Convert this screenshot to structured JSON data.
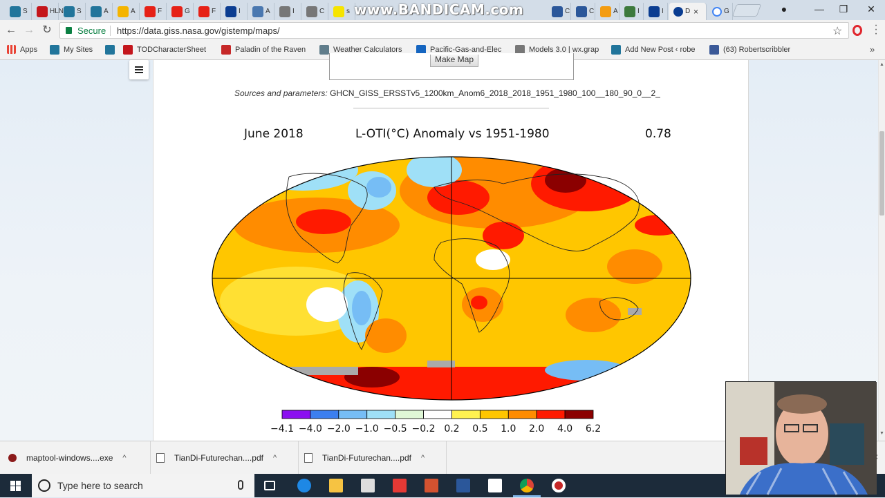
{
  "watermark": "www.BANDICAM.com",
  "tabs": [
    {
      "label": "S",
      "color": "#21759b"
    },
    {
      "label": "HLN",
      "color": "#c4161c"
    },
    {
      "label": "S",
      "color": "#21759b"
    },
    {
      "label": "A",
      "color": "#21759b"
    },
    {
      "label": "A",
      "color": "#f4b400"
    },
    {
      "label": "F",
      "color": "#e62117"
    },
    {
      "label": "G",
      "color": "#e62117"
    },
    {
      "label": "F",
      "color": "#e62117"
    },
    {
      "label": "I",
      "color": "#0b3d91"
    },
    {
      "label": "A",
      "color": "#4a78b0"
    },
    {
      "label": "I",
      "color": "#777777"
    },
    {
      "label": "C",
      "color": "#777777"
    },
    {
      "label": "s",
      "color": "#f6e400"
    }
  ],
  "right_tabs": [
    {
      "label": "C",
      "color": "#2b579a"
    },
    {
      "label": "C",
      "color": "#2b579a"
    },
    {
      "label": "A",
      "color": "#f39c12"
    },
    {
      "label": "I",
      "color": "#3d7a3d"
    },
    {
      "label": "I",
      "color": "#0b3d91"
    }
  ],
  "active_tab": {
    "label": "D",
    "close": "×"
  },
  "google_tab": {
    "label": "G",
    "color": "#4285f4"
  },
  "window_controls": {
    "profile": "●",
    "minimize": "—",
    "restore": "❐",
    "close": "✕"
  },
  "nav": {
    "back": "←",
    "forward": "→",
    "reload": "↻"
  },
  "address": {
    "secure_label": "Secure",
    "url": "https://data.giss.nasa.gov/gistemp/maps/",
    "star": "☆"
  },
  "bookmarks": [
    {
      "label": "Apps",
      "color": "#e94335"
    },
    {
      "label": "My Sites",
      "color": "#21759b"
    },
    {
      "label": "",
      "color": "#21759b"
    },
    {
      "label": "TODCharacterSheet ",
      "color": "#c4161c"
    },
    {
      "label": "Paladin of the Raven",
      "color": "#c62828"
    },
    {
      "label": "Weather Calculators",
      "color": "#607d8b"
    },
    {
      "label": "Pacific-Gas-and-Elec",
      "color": "#1565c0"
    },
    {
      "label": "Models 3.0 | wx.grap",
      "color": "#777777"
    },
    {
      "label": "Add New Post ‹ robe",
      "color": "#21759b"
    },
    {
      "label": "(63) Robertscribbler",
      "color": "#3b5998"
    }
  ],
  "bookmarks_more": "»",
  "form": {
    "make_map_label": "Make Map"
  },
  "sources": {
    "label": "Sources and parameters:",
    "value": "GHCN_GISS_ERSSTv5_1200km_Anom6_2018_2018_1951_1980_100__180_90_0__2_"
  },
  "map": {
    "left_title": "June 2018",
    "center_title": "L-OTI(°C) Anomaly vs 1951-1980",
    "right_value": "0.78",
    "colorbar": {
      "colors": [
        "#8b10f0",
        "#3c7ff0",
        "#76bdf5",
        "#9fe0f7",
        "#dff7d6",
        "#ffffff",
        "#fff250",
        "#ffc600",
        "#ff8c00",
        "#ff1a00",
        "#8b0000"
      ],
      "tick_labels": [
        "−4.1",
        "−4.0",
        "−2.0",
        "−1.0",
        "−0.5",
        "−0.2",
        "0.2",
        "0.5",
        "1.0",
        "2.0",
        "4.0",
        "6.2"
      ]
    }
  },
  "downloads": [
    {
      "label": "maptool-windows....exe",
      "chevron": "^"
    },
    {
      "label": "TianDi-Futurechan....pdf",
      "chevron": "^"
    },
    {
      "label": "TianDi-Futurechan....pdf",
      "chevron": "^"
    }
  ],
  "downloads_close": "×",
  "taskbar": {
    "search_placeholder": "Type here to search",
    "icons": [
      {
        "name": "task-view-icon",
        "color": "#ffffff"
      },
      {
        "name": "edge-icon",
        "color": "#1e88e5"
      },
      {
        "name": "file-explorer-icon",
        "color": "#f6c342"
      },
      {
        "name": "store-icon",
        "color": "#dddddd"
      },
      {
        "name": "reader-icon",
        "color": "#e53935"
      },
      {
        "name": "powerpoint-icon",
        "color": "#d35230"
      },
      {
        "name": "word-icon",
        "color": "#2b579a"
      },
      {
        "name": "mail-icon",
        "color": "#ffffff"
      },
      {
        "name": "chrome-icon",
        "color": "#4caf50"
      },
      {
        "name": "bandicam-icon",
        "color": "#ffffff"
      }
    ]
  }
}
